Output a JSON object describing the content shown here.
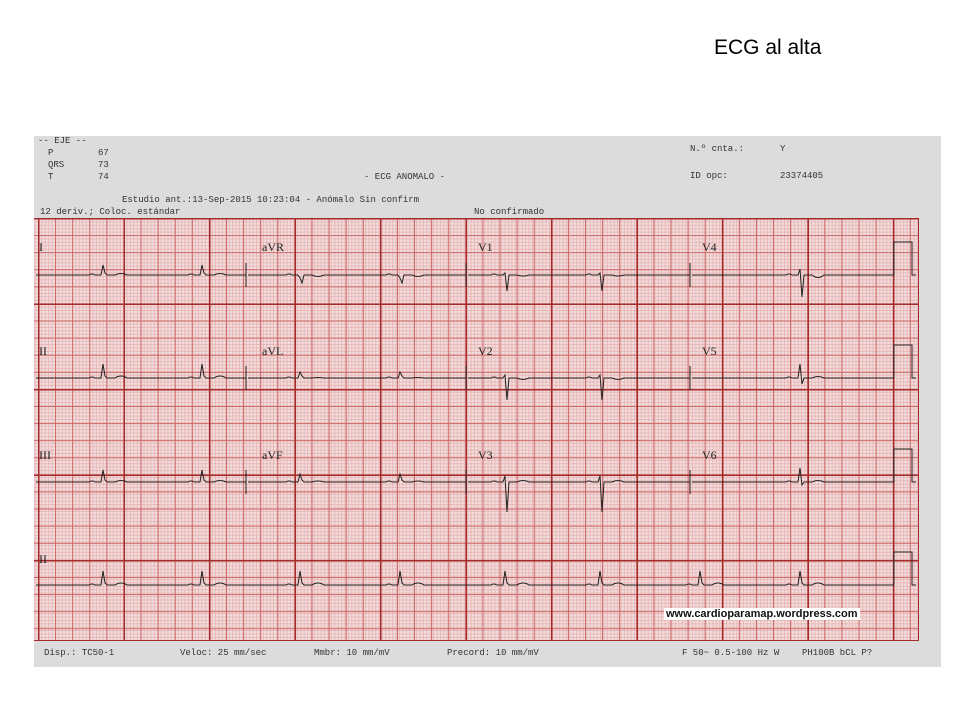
{
  "slide_title": "ECG al alta",
  "header": {
    "axis_title": "-- EJE --",
    "axes": [
      {
        "label": "P",
        "value": "67"
      },
      {
        "label": "QRS",
        "value": "73"
      },
      {
        "label": "T",
        "value": "74"
      }
    ],
    "interpretation": "- ECG ANOMALO -",
    "previous_study": "Estudio ant.:13-Sep-2015 10:23:04 - Anómalo Sin confirm",
    "leads_info": "12 deriv.; Coloc. estándar",
    "confirmation": "No confirmado",
    "account_label": "N.º cnta.:",
    "account_value": "Y",
    "operator_label": "ID opc:",
    "operator_value": "23374405"
  },
  "leads": [
    "I",
    "aVR",
    "V1",
    "V4",
    "II",
    "aVL",
    "V2",
    "V5",
    "III",
    "aVF",
    "V3",
    "V6",
    "II"
  ],
  "footer": {
    "device": "Disp.: TC50-1",
    "speed": "Veloc: 25 mm/sec",
    "limb_gain": "Mmbr: 10 mm/mV",
    "chest_gain": "Precord: 10 mm/mV",
    "filter": "F 50~ 0.5-100 Hz W",
    "model": "PH100B bCL P?"
  },
  "watermark": "www.cardioparamap.wordpress.com",
  "colors": {
    "grid_major": "#a52a2a",
    "grid_minor": "#e7b8b8",
    "paper": "#f3dede",
    "trace": "#222222"
  }
}
